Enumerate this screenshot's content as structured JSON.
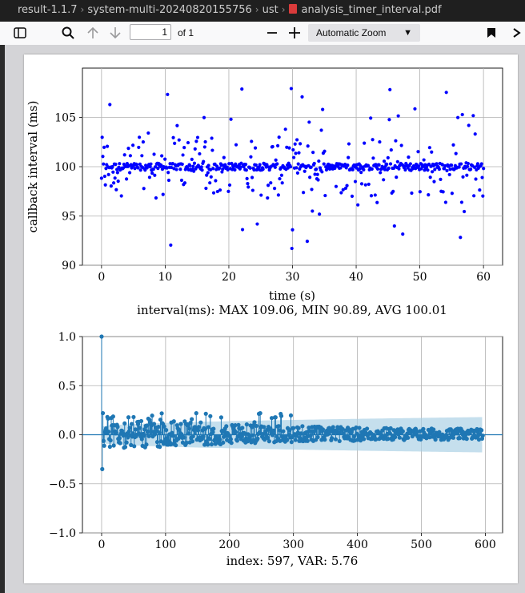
{
  "window": {
    "breadcrumbs": [
      "result-1.1.7",
      "system-multi-20240820155756",
      "ust",
      "analysis_timer_interval.pdf"
    ]
  },
  "toolbar": {
    "page_number": "1",
    "page_count": "of 1",
    "zoom_label": "Automatic Zoom",
    "icons": [
      "sidebar-toggle-icon",
      "search-icon",
      "arrow-up-icon",
      "arrow-down-icon",
      "zoom-out-icon",
      "zoom-in-icon",
      "bookmark-icon",
      "more-icon"
    ]
  },
  "chart_data": [
    {
      "type": "scatter",
      "ylabel": "callback interval (ms)",
      "xlabel": "time (s)",
      "caption": "interval(ms): MAX 109.06, MIN 90.89, AVG 100.01",
      "xlim": [
        -3,
        63
      ],
      "ylim": [
        90,
        110
      ],
      "xticks": [
        0,
        10,
        20,
        30,
        40,
        50,
        60
      ],
      "yticks": [
        90,
        95,
        100,
        105
      ],
      "grid": true,
      "series_color": "#0000ff",
      "summary": {
        "count": 597,
        "max": 109.06,
        "min": 90.89,
        "avg": 100.01,
        "duration_s": 60
      }
    },
    {
      "type": "stem",
      "xlabel": "index: 597, VAR: 5.76",
      "xlim": [
        -30,
        627
      ],
      "ylim": [
        -1.0,
        1.0
      ],
      "xticks": [
        0,
        100,
        200,
        300,
        400,
        500,
        600
      ],
      "yticks": [
        "1.0",
        "0.5",
        "0.0",
        "−0.5",
        "−1.0"
      ],
      "ytick_values": [
        1.0,
        0.5,
        0.0,
        -0.5,
        -1.0
      ],
      "grid": true,
      "series_color": "#1f77b4",
      "band_color": "#a6cee3",
      "first_values": [
        1.0,
        -0.35,
        0.22
      ],
      "lags": 597
    }
  ]
}
